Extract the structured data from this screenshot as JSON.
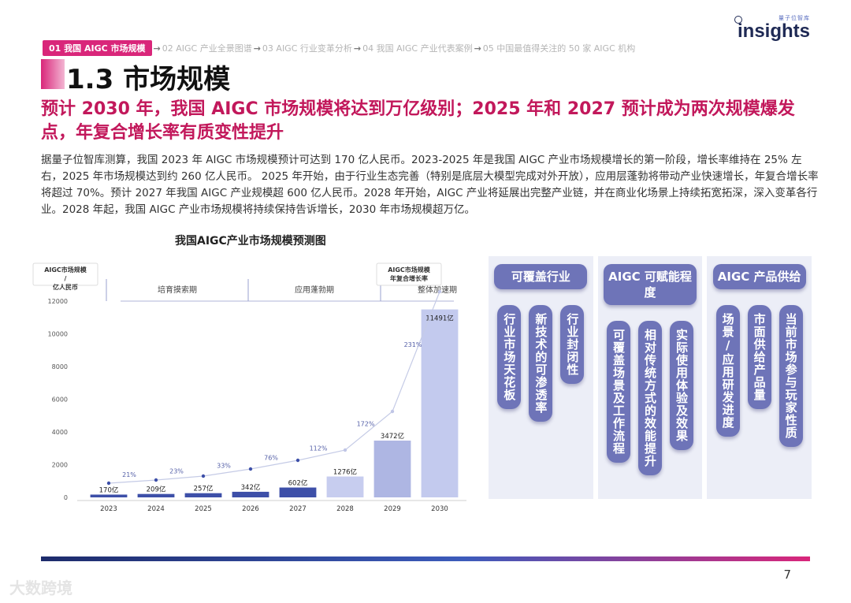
{
  "logo": {
    "sub": "量子位智库",
    "main": "insights"
  },
  "breadcrumb": [
    "01 我国 AIGC 市场规模",
    "02 AIGC 产业全景图谱",
    "03 AIGC 行业变革分析",
    "04 我国 AIGC 产业代表案例",
    "05 中国最值得关注的 50 家 AIGC 机构"
  ],
  "page_title": "1.3 市场规模",
  "headline": "预计 2030 年，我国 AIGC 市场规模将达到万亿级别；2025 年和 2027 预计成为两次规模爆发点，年复合增长率有质变性提升",
  "body": "据量子位智库测算，我国 2023 年 AIGC 市场规模预计可达到 170 亿人民币。2023-2025 年是我国 AIGC 产业市场规模增长的第一阶段，增长率维持在 25% 左右，2025 年市场规模达到约 260 亿人民币。 2025 年开始，由于行业生态完善（特别是底层大模型完成对外开放），应用层蓬勃将带动产业快速增长，年复合增长率将超过 70%。预计 2027 年我国 AIGC 产业规模超 600 亿人民币。2028 年开始，AIGC 产业将延展出完整产业链，并在商业化场景上持续拓宽拓深，深入变革各行业。2028 年起，我国 AIGC 产业市场规模将持续保持告诉增长，2030 年市场规模超万亿。",
  "chart_data": {
    "type": "bar",
    "title": "我国AIGC产业市场规模预测图",
    "categories": [
      "2023",
      "2024",
      "2025",
      "2026",
      "2027",
      "2028",
      "2029",
      "2030"
    ],
    "series": [
      {
        "name": "AIGC市场规模 / 亿人民币",
        "values": [
          170,
          209,
          257,
          342,
          602,
          1276,
          3472,
          11491
        ],
        "labels": [
          "170亿",
          "209亿",
          "257亿",
          "342亿",
          "602亿",
          "1276亿",
          "3472亿",
          "11491亿"
        ]
      },
      {
        "name": "AIGC市场规模 年复合增长率",
        "type": "line",
        "values": [
          null,
          21,
          23,
          33,
          76,
          112,
          172,
          231
        ],
        "labels": [
          "",
          "21%",
          "23%",
          "33%",
          "76%",
          "112%",
          "172%",
          "231%"
        ]
      }
    ],
    "legend": [
      "AIGC市场规模 / 亿人民币",
      "AIGC市场规模 年复合增长率"
    ],
    "yticks": [
      "0",
      "2000",
      "4000",
      "6000",
      "8000",
      "10000",
      "12000"
    ],
    "ylim": [
      0,
      12000
    ],
    "phases": [
      "培育摸索期",
      "应用蓬勃期",
      "整体加速期"
    ],
    "colors": {
      "bar": "#3d4fa8",
      "bar_light": "#b9c1e6",
      "line": "#c5cbe6",
      "label": "#5560a8"
    }
  },
  "panel": [
    {
      "header": "可覆盖行业",
      "tags": [
        "行业市场天花板",
        "新技术的可渗透率",
        "行业封闭性"
      ]
    },
    {
      "header": "AIGC 可赋能程度",
      "tags": [
        "可覆盖场景及工作流程",
        "相对传统方式的效能提升",
        "实际使用体验及效果"
      ]
    },
    {
      "header": "AIGC 产品供给",
      "tags": [
        "场景/应用研发进度",
        "市面供给产品量",
        "当前市场参与玩家性质"
      ]
    }
  ],
  "page_number": "7",
  "watermark": "大数跨境"
}
